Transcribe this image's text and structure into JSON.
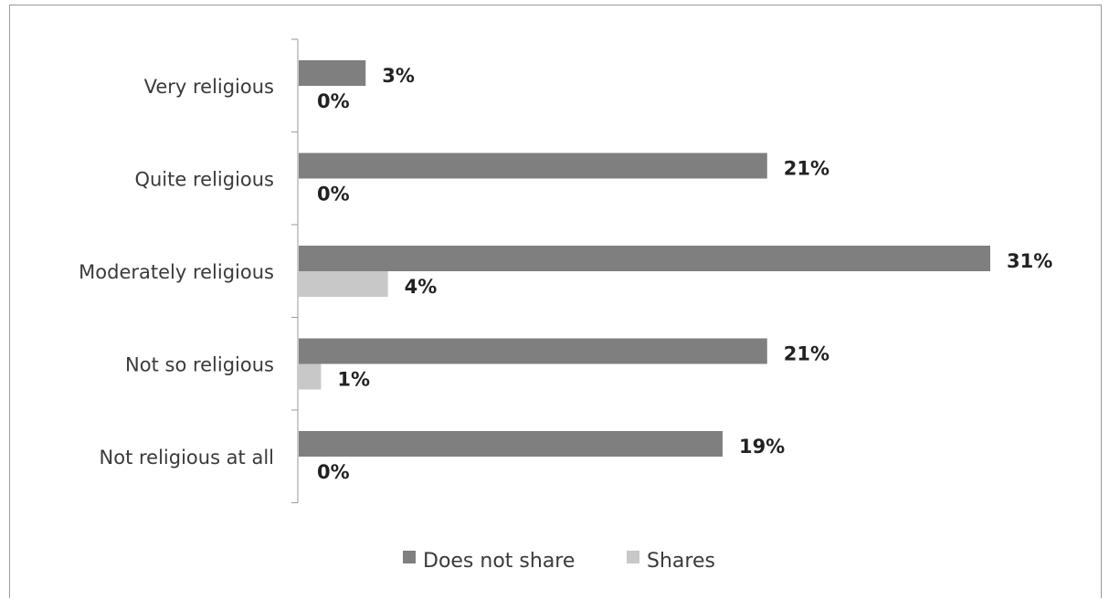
{
  "chart_data": {
    "type": "bar",
    "orientation": "horizontal",
    "title": "",
    "xlabel": "",
    "ylabel": "",
    "categories": [
      "Very religious",
      "Quite religious",
      "Moderately religious",
      "Not so religious",
      "Not religious at all"
    ],
    "value_labels": {
      "Does not share": [
        "3%",
        "21%",
        "31%",
        "21%",
        "19%"
      ],
      "Shares": [
        "0%",
        "0%",
        "4%",
        "1%",
        "0%"
      ]
    },
    "series": [
      {
        "name": "Does not share",
        "values": [
          3,
          21,
          31,
          21,
          19
        ],
        "color": "#7f7f7f"
      },
      {
        "name": "Shares",
        "values": [
          0,
          0,
          4,
          1,
          0
        ],
        "color": "#c8c8c8"
      }
    ],
    "xlim": [
      0,
      31
    ],
    "grid": false,
    "legend_position": "bottom"
  }
}
